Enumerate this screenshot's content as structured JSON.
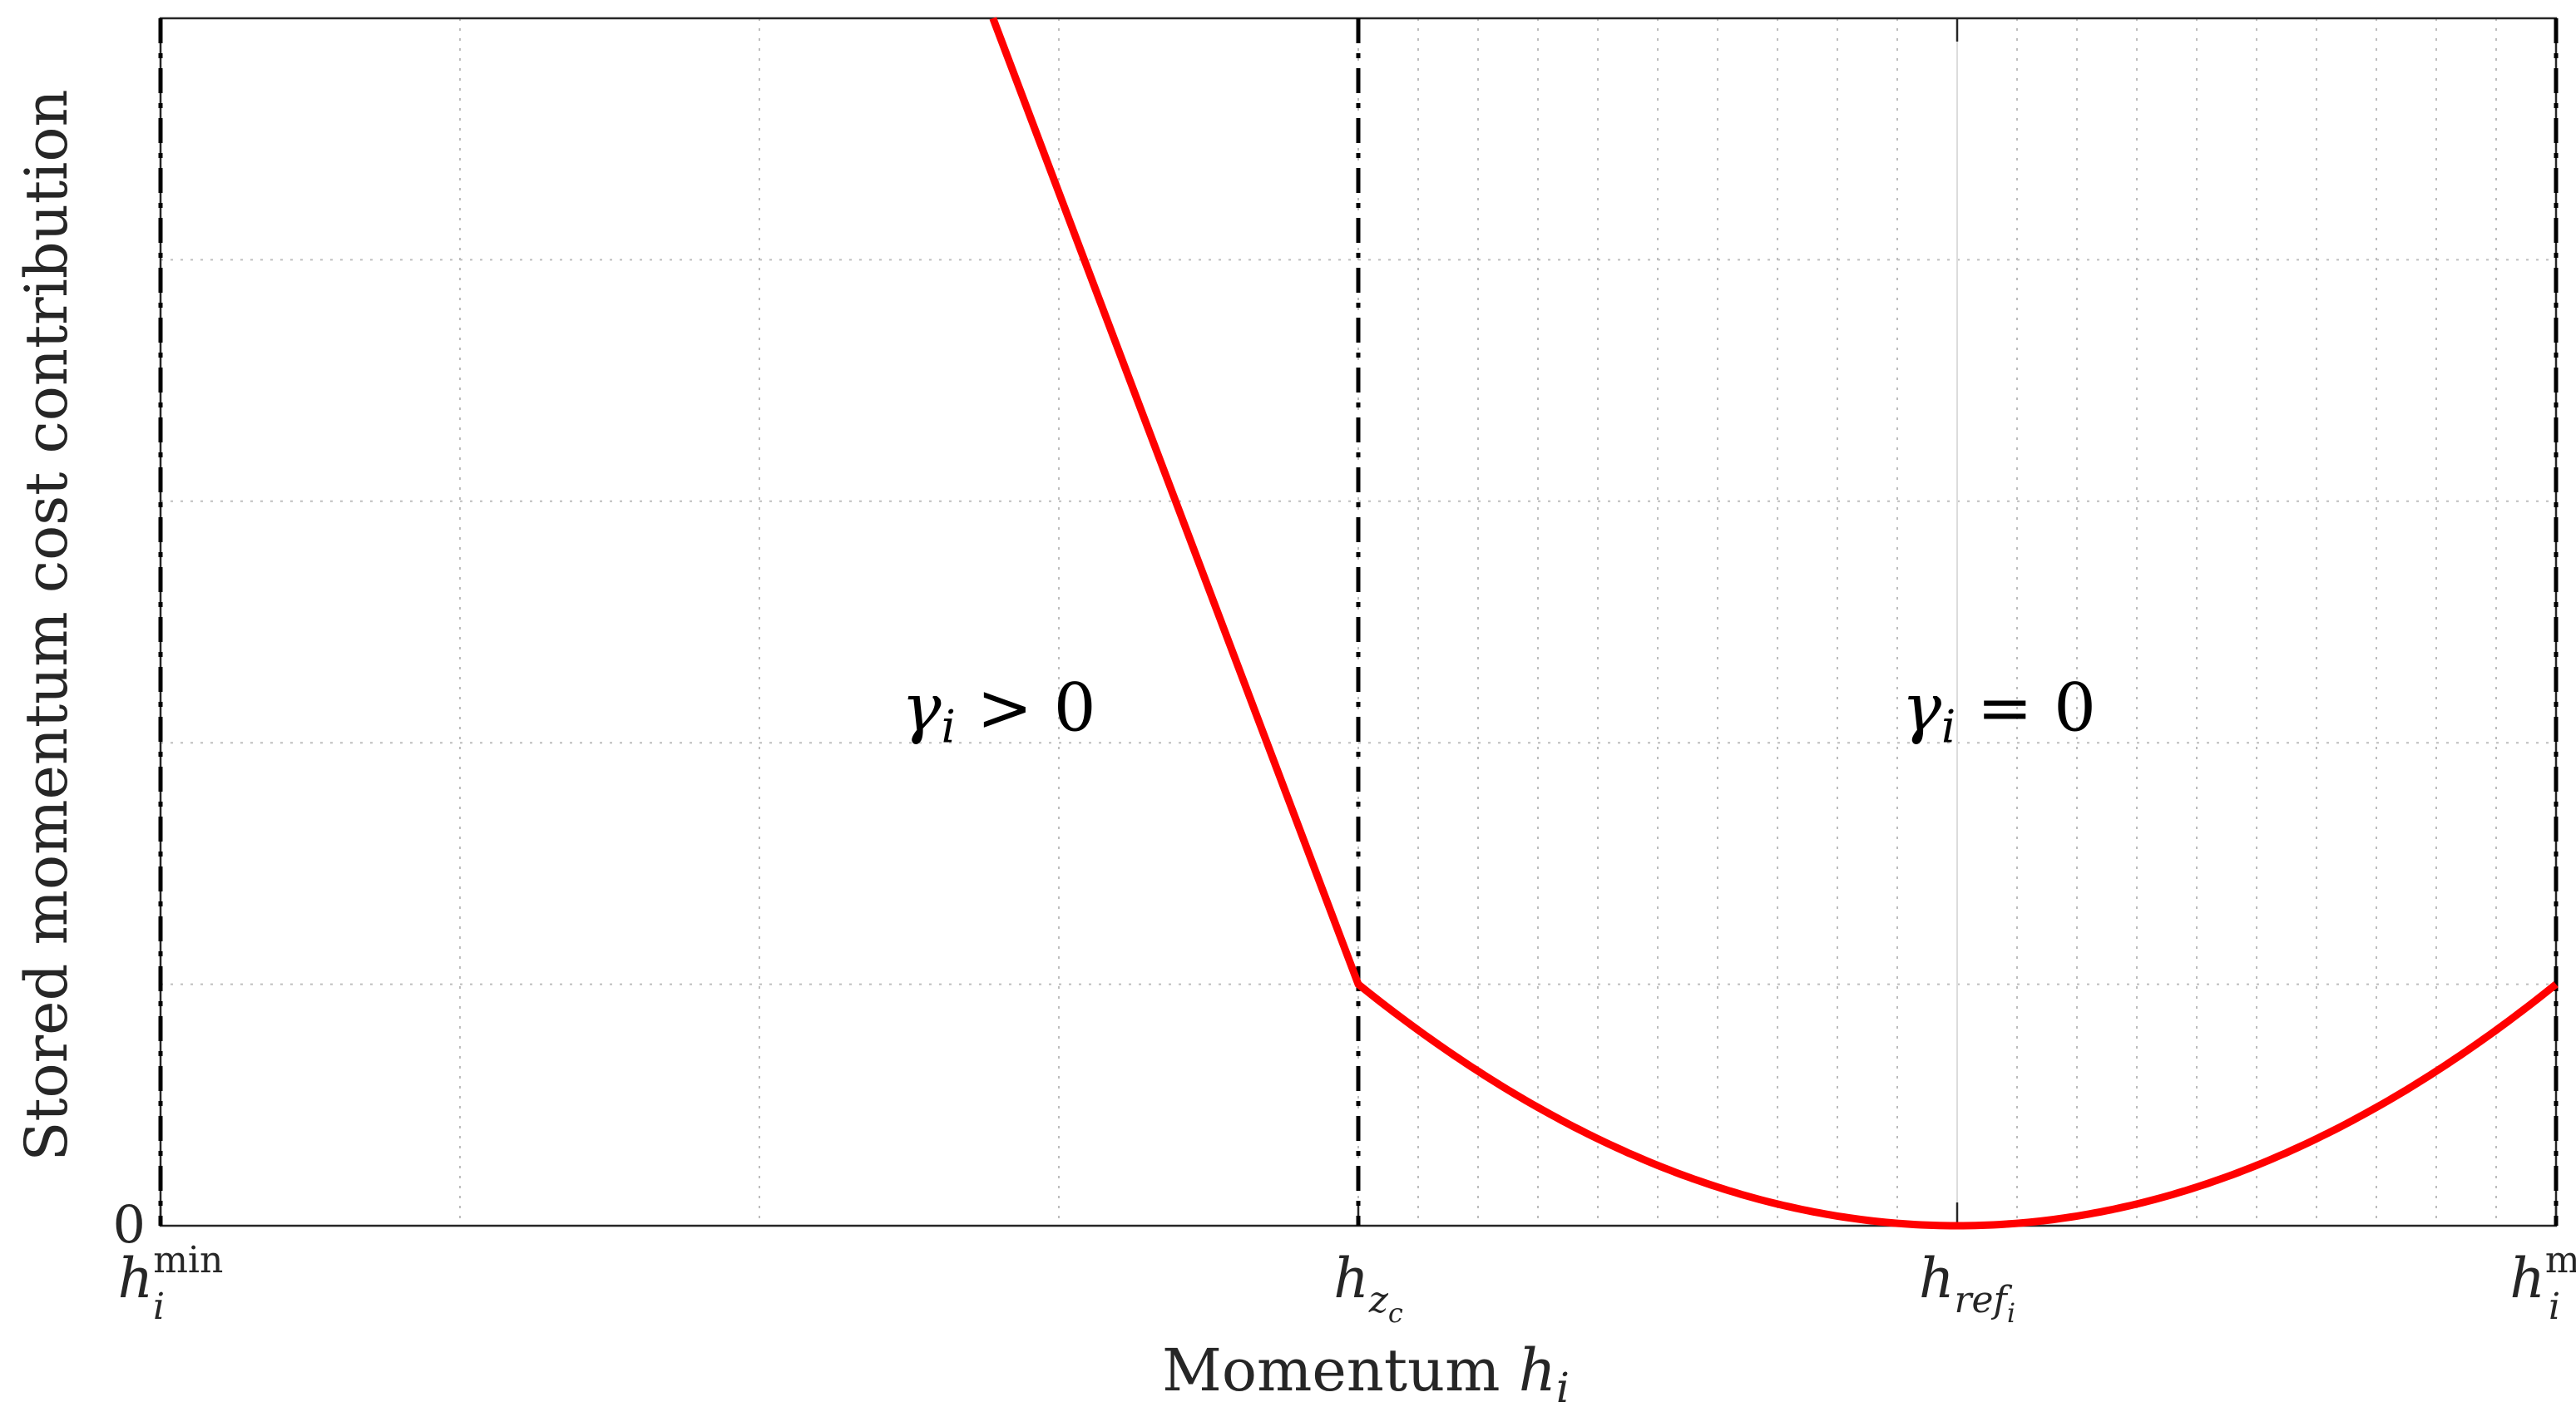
{
  "chart_data": {
    "type": "line",
    "ylabel": "Stored momentum cost contribution",
    "xlabel": {
      "text": "Momentum ",
      "var": "h",
      "sub": "i"
    },
    "xlim": [
      0,
      40
    ],
    "ylim": [
      0,
      50
    ],
    "grid": true,
    "x_ticks": [
      {
        "value": 0,
        "base": "h",
        "sub": "i",
        "sup": "min"
      },
      {
        "value": 20,
        "base": "h",
        "sub": "z",
        "subsub": "c"
      },
      {
        "value": 30,
        "base": "h",
        "sub": "ref",
        "subsub": "i"
      },
      {
        "value": 40,
        "base": "h",
        "sub": "i",
        "sup": "max"
      }
    ],
    "y_ticks": [
      {
        "value": 0,
        "label": "0"
      }
    ],
    "vlines": [
      0,
      20,
      40
    ],
    "series": [
      {
        "color": "#ff0000",
        "linear": {
          "x": [
            13.9,
            20
          ],
          "y": [
            50,
            10
          ]
        },
        "quadratic": {
          "x_start": 20,
          "x_end": 40,
          "vertex_x": 30,
          "vertex_y": 0,
          "end_y": 10
        }
      }
    ],
    "annotations": [
      {
        "x": 13.9,
        "y": 20.5,
        "greek": "γ",
        "sub": "i",
        "rel": " > 0"
      },
      {
        "x": 30.6,
        "y": 20.5,
        "greek": "γ",
        "sub": "i",
        "rel": " = 0"
      }
    ]
  }
}
